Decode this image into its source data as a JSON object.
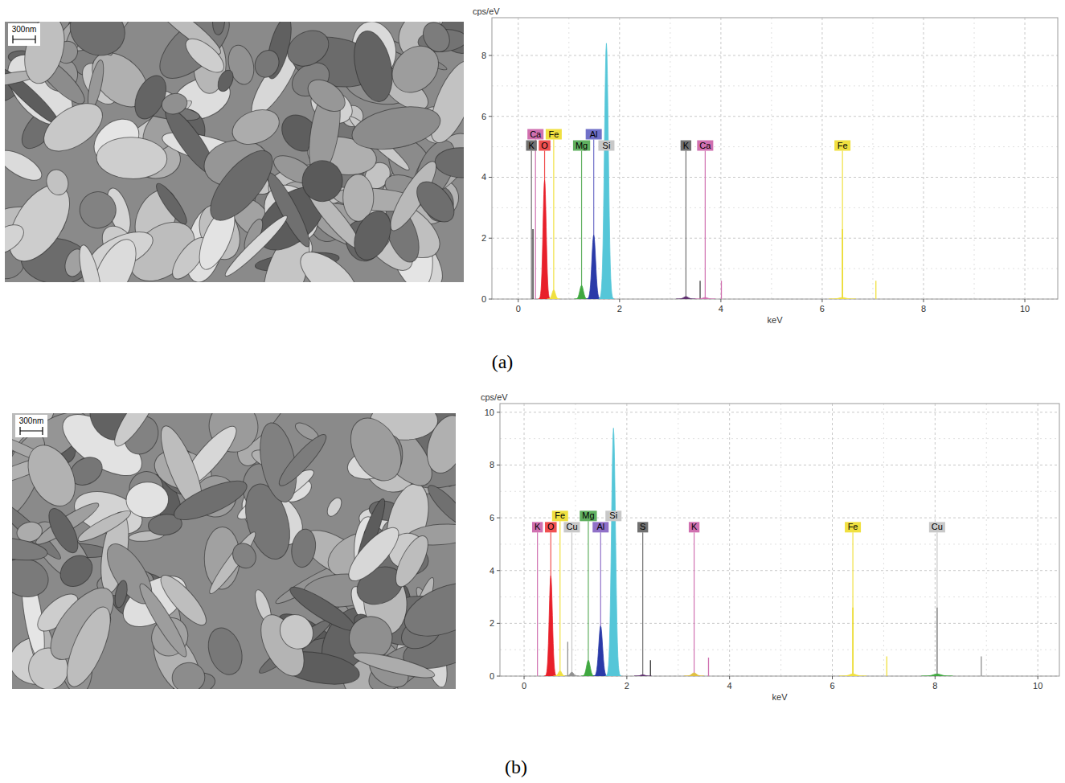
{
  "panels": [
    {
      "label": "(a)",
      "scale_bar": "300nm"
    },
    {
      "label": "(b)",
      "scale_bar": "300nm"
    }
  ],
  "chart_data": [
    {
      "type": "spectrum",
      "ylabel": "cps/eV",
      "xlabel": "keV",
      "grid": true,
      "xlim": [
        -0.52,
        10.65
      ],
      "xticks": [
        0,
        2,
        4,
        6,
        8,
        10
      ],
      "ylim": [
        0,
        9.24
      ],
      "yticks": [
        0,
        2,
        4,
        6,
        8
      ],
      "peaks": [
        {
          "element": "O",
          "energy": 0.52,
          "height": 3.9,
          "color": "#e8202a"
        },
        {
          "element": "Fe",
          "energy": 0.7,
          "height": 0.3,
          "color": "#f0e040"
        },
        {
          "element": "Mg",
          "energy": 1.25,
          "height": 0.45,
          "color": "#40a840"
        },
        {
          "element": "Al",
          "energy": 1.49,
          "height": 2.1,
          "color": "#2a3aa8"
        },
        {
          "element": "Si",
          "energy": 1.74,
          "height": 8.4,
          "color": "#55c6d8"
        },
        {
          "element": "K",
          "energy": 3.31,
          "height": 0.08,
          "color": "#603070"
        },
        {
          "element": "Ca",
          "energy": 3.69,
          "height": 0.05,
          "color": "#d070b0"
        },
        {
          "element": "Fe",
          "energy": 6.4,
          "height": 0.05,
          "color": "#f0e040"
        }
      ],
      "lines": [
        {
          "energy": 0.29,
          "height": 2.3,
          "color": "#222222"
        },
        {
          "energy": 3.59,
          "height": 0.6,
          "color": "#444444"
        },
        {
          "energy": 4.01,
          "height": 0.6,
          "color": "#d070b0"
        },
        {
          "energy": 6.4,
          "height": 2.3,
          "color": "#e8d820"
        },
        {
          "energy": 7.06,
          "height": 0.6,
          "color": "#f0e040"
        }
      ],
      "markers": [
        {
          "label": "K",
          "energy": 0.26,
          "color": "#707070"
        },
        {
          "label": "Ca",
          "energy": 0.34,
          "color": "#d070b0"
        },
        {
          "label": "O",
          "energy": 0.52,
          "color": "#f05050"
        },
        {
          "label": "Fe",
          "energy": 0.7,
          "color": "#f0e040"
        },
        {
          "label": "Mg",
          "energy": 1.25,
          "color": "#60b060"
        },
        {
          "label": "Al",
          "energy": 1.49,
          "color": "#7070c8"
        },
        {
          "label": "Si",
          "energy": 1.74,
          "color": "#c8c8c8"
        },
        {
          "label": "K",
          "energy": 3.31,
          "color": "#707070"
        },
        {
          "label": "Ca",
          "energy": 3.69,
          "color": "#d070b0"
        },
        {
          "label": "Fe",
          "energy": 6.4,
          "color": "#f0e040"
        }
      ]
    },
    {
      "type": "spectrum",
      "ylabel": "cps/eV",
      "xlabel": "keV",
      "grid": true,
      "xlim": [
        -0.47,
        10.42
      ],
      "xticks": [
        0,
        2,
        4,
        6,
        8,
        10
      ],
      "ylim": [
        0,
        10.33
      ],
      "yticks": [
        0,
        2,
        4,
        6,
        8,
        10
      ],
      "peaks": [
        {
          "element": "O",
          "energy": 0.52,
          "height": 3.8,
          "color": "#e8202a"
        },
        {
          "element": "Fe",
          "energy": 0.7,
          "height": 0.2,
          "color": "#f0e040"
        },
        {
          "element": "Cu",
          "energy": 0.93,
          "height": 0.15,
          "color": "#909090"
        },
        {
          "element": "Mg",
          "energy": 1.25,
          "height": 0.6,
          "color": "#40a840"
        },
        {
          "element": "Al",
          "energy": 1.49,
          "height": 1.9,
          "color": "#2a3aa8"
        },
        {
          "element": "Si",
          "energy": 1.74,
          "height": 9.4,
          "color": "#55c6d8"
        },
        {
          "element": "S",
          "energy": 2.31,
          "height": 0.05,
          "color": "#603070"
        },
        {
          "element": "K",
          "energy": 3.31,
          "height": 0.12,
          "color": "#e0c040"
        },
        {
          "element": "Fe",
          "energy": 6.4,
          "height": 0.08,
          "color": "#f0e040"
        },
        {
          "element": "Cu",
          "energy": 8.04,
          "height": 0.08,
          "color": "#40a840"
        }
      ],
      "lines": [
        {
          "energy": 0.85,
          "height": 1.3,
          "color": "#909090"
        },
        {
          "energy": 2.46,
          "height": 0.6,
          "color": "#333333"
        },
        {
          "energy": 3.59,
          "height": 0.7,
          "color": "#d070b0"
        },
        {
          "energy": 6.4,
          "height": 2.6,
          "color": "#e8d820"
        },
        {
          "energy": 7.06,
          "height": 0.75,
          "color": "#f0e040"
        },
        {
          "energy": 8.04,
          "height": 2.6,
          "color": "#808080"
        },
        {
          "energy": 8.9,
          "height": 0.75,
          "color": "#909090"
        }
      ],
      "markers": [
        {
          "label": "K",
          "energy": 0.26,
          "color": "#d070b0"
        },
        {
          "label": "O",
          "energy": 0.52,
          "color": "#f05050"
        },
        {
          "label": "Fe",
          "energy": 0.7,
          "color": "#f0e040"
        },
        {
          "label": "Cu",
          "energy": 0.93,
          "color": "#c8c8c8"
        },
        {
          "label": "Mg",
          "energy": 1.25,
          "color": "#60b060"
        },
        {
          "label": "Al",
          "energy": 1.49,
          "color": "#9070c8"
        },
        {
          "label": "Si",
          "energy": 1.74,
          "color": "#c8c8c8"
        },
        {
          "label": "S",
          "energy": 2.31,
          "color": "#707070"
        },
        {
          "label": "K",
          "energy": 3.31,
          "color": "#d070b0"
        },
        {
          "label": "Fe",
          "energy": 6.4,
          "color": "#f0e040"
        },
        {
          "label": "Cu",
          "energy": 8.04,
          "color": "#c8c8c8"
        }
      ]
    }
  ]
}
